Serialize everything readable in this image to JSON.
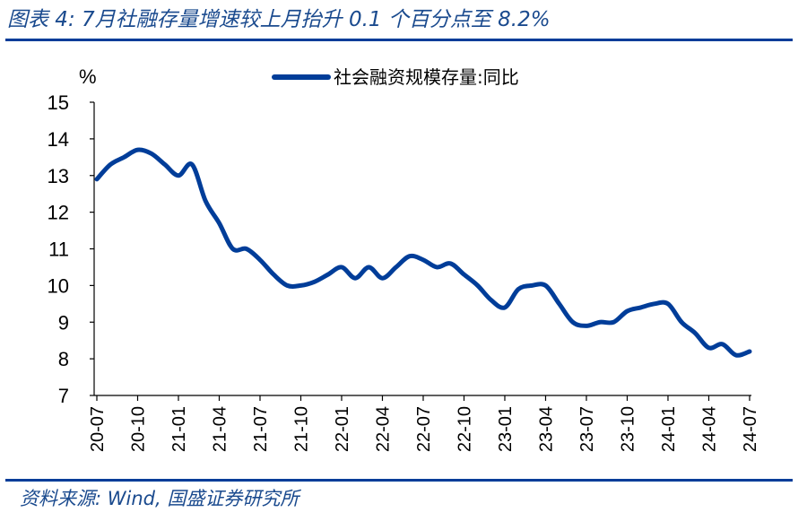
{
  "header": {
    "title": "图表 4:  7月社融存量增速较上月抬升 0.1 个百分点至 8.2%"
  },
  "footer": {
    "source": "资料来源:  Wind, 国盛证券研究所"
  },
  "colors": {
    "line": "#003d99",
    "rule": "#003d99",
    "title": "#1a4a8e"
  },
  "chart_data": {
    "type": "line",
    "title": "",
    "ylabel": "%",
    "ylim": [
      7,
      15
    ],
    "yticks": [
      "7",
      "8",
      "9",
      "10",
      "11",
      "12",
      "13",
      "14",
      "15"
    ],
    "xticks": [
      "20-07",
      "20-10",
      "21-01",
      "21-04",
      "21-07",
      "21-10",
      "22-01",
      "22-04",
      "22-07",
      "22-10",
      "23-01",
      "23-04",
      "23-07",
      "23-10",
      "24-01",
      "24-04",
      "24-07"
    ],
    "legend_position": "top",
    "series": [
      {
        "name": "社会融资规模存量:同比",
        "x": [
          "20-07",
          "20-08",
          "20-09",
          "20-10",
          "20-11",
          "20-12",
          "21-01",
          "21-02",
          "21-03",
          "21-04",
          "21-05",
          "21-06",
          "21-07",
          "21-08",
          "21-09",
          "21-10",
          "21-11",
          "21-12",
          "22-01",
          "22-02",
          "22-03",
          "22-04",
          "22-05",
          "22-06",
          "22-07",
          "22-08",
          "22-09",
          "22-10",
          "22-11",
          "22-12",
          "23-01",
          "23-02",
          "23-03",
          "23-04",
          "23-05",
          "23-06",
          "23-07",
          "23-08",
          "23-09",
          "23-10",
          "23-11",
          "23-12",
          "24-01",
          "24-02",
          "24-03",
          "24-04",
          "24-05",
          "24-06",
          "24-07"
        ],
        "values": [
          12.9,
          13.3,
          13.5,
          13.7,
          13.6,
          13.3,
          13.0,
          13.3,
          12.3,
          11.7,
          11.0,
          11.0,
          10.7,
          10.3,
          10.0,
          10.0,
          10.1,
          10.3,
          10.5,
          10.2,
          10.5,
          10.2,
          10.5,
          10.8,
          10.7,
          10.5,
          10.6,
          10.3,
          10.0,
          9.6,
          9.4,
          9.9,
          10.0,
          10.0,
          9.5,
          9.0,
          8.9,
          9.0,
          9.0,
          9.3,
          9.4,
          9.5,
          9.5,
          9.0,
          8.7,
          8.3,
          8.4,
          8.1,
          8.2
        ]
      }
    ]
  }
}
